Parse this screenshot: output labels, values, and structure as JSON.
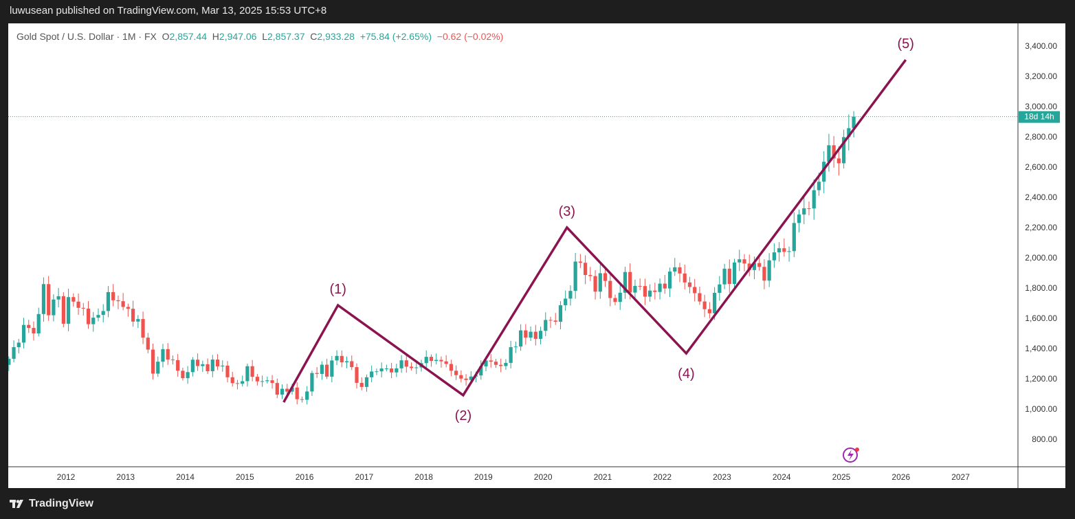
{
  "header": {
    "published": "luwusean published on TradingView.com, Mar 13, 2025 15:53 UTC+8"
  },
  "legend": {
    "symbol": "Gold Spot / U.S. Dollar · 1M · FX",
    "o_label": "O",
    "open": "2,857.44",
    "h_label": "H",
    "high": "2,947.06",
    "l_label": "L",
    "low": "2,857.37",
    "c_label": "C",
    "close": "2,933.28",
    "change": "+75.84 (+2.65%)",
    "change2": "−0.62 (−0.02%)"
  },
  "countdown": "18d 14h",
  "footer": {
    "brand": "TradingView"
  },
  "colors": {
    "up": "#26a69a",
    "down": "#ef5350",
    "wave": "#8b1450",
    "label": "#8b1450"
  },
  "chart_data": {
    "type": "candlestick",
    "title": "Gold Spot / U.S. Dollar",
    "timeframe": "1M",
    "start": "2011-01",
    "closes": [
      1332,
      1409,
      1439,
      1556,
      1536,
      1500,
      1628,
      1826,
      1620,
      1724,
      1746,
      1564,
      1740,
      1710,
      1669,
      1664,
      1561,
      1604,
      1622,
      1648,
      1773,
      1719,
      1713,
      1675,
      1663,
      1578,
      1595,
      1472,
      1393,
      1234,
      1313,
      1396,
      1327,
      1323,
      1253,
      1204,
      1244,
      1326,
      1284,
      1296,
      1250,
      1327,
      1282,
      1287,
      1210,
      1171,
      1167,
      1184,
      1283,
      1213,
      1183,
      1184,
      1190,
      1172,
      1095,
      1134,
      1115,
      1142,
      1065,
      1061,
      1116,
      1238,
      1232,
      1293,
      1214,
      1321,
      1351,
      1309,
      1316,
      1277,
      1173,
      1146,
      1210,
      1248,
      1249,
      1268,
      1268,
      1242,
      1269,
      1322,
      1280,
      1271,
      1275,
      1303,
      1345,
      1318,
      1325,
      1315,
      1298,
      1253,
      1224,
      1201,
      1192,
      1215,
      1222,
      1282,
      1321,
      1313,
      1292,
      1284,
      1305,
      1409,
      1413,
      1520,
      1472,
      1511,
      1464,
      1517,
      1589,
      1585,
      1577,
      1686,
      1730,
      1781,
      1975,
      1967,
      1886,
      1879,
      1776,
      1898,
      1847,
      1734,
      1708,
      1769,
      1906,
      1770,
      1814,
      1813,
      1743,
      1783,
      1774,
      1829,
      1797,
      1909,
      1937,
      1896,
      1837,
      1807,
      1766,
      1711,
      1660,
      1633,
      1768,
      1824,
      1928,
      1827,
      1969,
      1990,
      1962,
      1919,
      1965,
      1940,
      1849,
      1983,
      2036,
      2063,
      2039,
      2044,
      2230,
      2286,
      2327,
      2326,
      2447,
      2503,
      2635,
      2744,
      2657,
      2625,
      2798,
      2857,
      2933
    ],
    "last_price": 2933.28,
    "y_ticks": [
      "3,400.00",
      "3,200.00",
      "3,000.00",
      "2,800.00",
      "2,600.00",
      "2,400.00",
      "2,200.00",
      "2,000.00",
      "1,800.00",
      "1,600.00",
      "1,400.00",
      "1,200.00",
      "1,000.00",
      "800.00"
    ],
    "y_values": [
      3400,
      3200,
      3000,
      2800,
      2600,
      2400,
      2200,
      2000,
      1800,
      1600,
      1400,
      1200,
      1000,
      800
    ],
    "x_ticks": [
      "2012",
      "2013",
      "2014",
      "2015",
      "2016",
      "2017",
      "2018",
      "2019",
      "2020",
      "2021",
      "2022",
      "2023",
      "2024",
      "2025",
      "2026",
      "2027"
    ],
    "elliott_wave": [
      {
        "label": "",
        "year": 2015.65,
        "price": 1045
      },
      {
        "label": "(1)",
        "year": 2016.56,
        "price": 1686
      },
      {
        "label": "(2)",
        "year": 2018.66,
        "price": 1091
      },
      {
        "label": "(3)",
        "year": 2020.4,
        "price": 2200
      },
      {
        "label": "(4)",
        "year": 2022.4,
        "price": 1368
      },
      {
        "label": "(5)",
        "year": 2026.08,
        "price": 3309
      }
    ]
  }
}
